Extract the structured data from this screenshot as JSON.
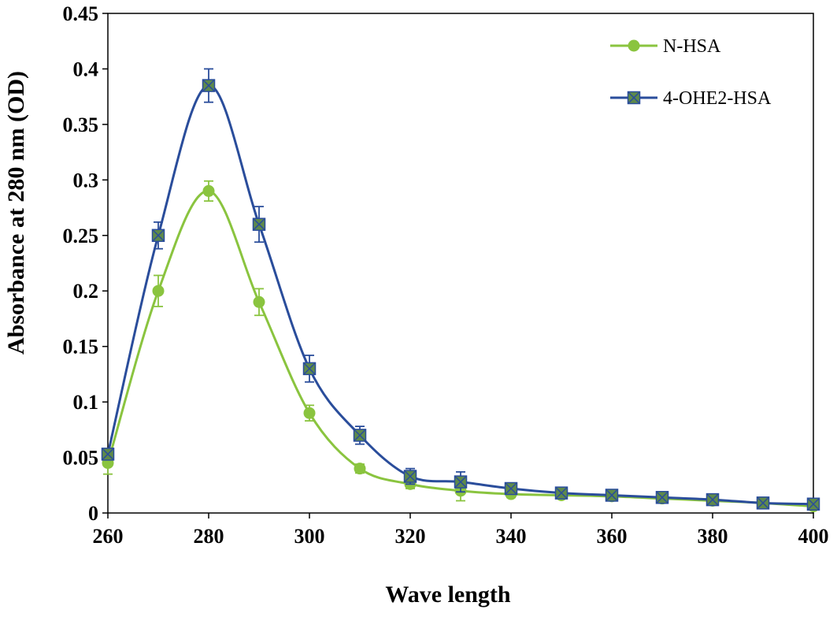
{
  "chart_data": {
    "type": "line",
    "title": "",
    "xlabel": "Wave length",
    "ylabel": "Absorbance at 280 nm (OD)",
    "xlim": [
      260,
      400
    ],
    "ylim": [
      0,
      0.45
    ],
    "grid": false,
    "legend_position": "top-right",
    "x_ticks": [
      "260",
      "280",
      "300",
      "320",
      "340",
      "360",
      "380",
      "400"
    ],
    "y_ticks": [
      "0",
      "0.05",
      "0.1",
      "0.15",
      "0.2",
      "0.25",
      "0.3",
      "0.35",
      "0.4",
      "0.45"
    ],
    "x": [
      260,
      270,
      280,
      290,
      300,
      310,
      320,
      330,
      340,
      350,
      360,
      370,
      380,
      390,
      400
    ],
    "series": [
      {
        "name": "N-HSA",
        "color": "#8ac43f",
        "marker": "circle",
        "values": [
          0.045,
          0.2,
          0.29,
          0.19,
          0.09,
          0.04,
          0.026,
          0.02,
          0.017,
          0.016,
          0.015,
          0.013,
          0.011,
          0.009,
          0.006
        ],
        "errors": [
          0.01,
          0.014,
          0.009,
          0.012,
          0.007,
          0.004,
          0.004,
          0.009,
          0.003,
          0.003,
          0.002,
          0.002,
          0.002,
          0.002,
          0.002
        ]
      },
      {
        "name": "4-OHE2-HSA",
        "color": "#2a4d9b",
        "marker_fill": "#5e8a4a",
        "marker": "square-x",
        "values": [
          0.053,
          0.25,
          0.385,
          0.26,
          0.13,
          0.07,
          0.033,
          0.028,
          0.022,
          0.018,
          0.016,
          0.014,
          0.012,
          0.009,
          0.008
        ],
        "errors": [
          0.004,
          0.012,
          0.015,
          0.016,
          0.012,
          0.008,
          0.007,
          0.009,
          0.004,
          0.003,
          0.003,
          0.002,
          0.002,
          0.002,
          0.002
        ]
      }
    ]
  }
}
